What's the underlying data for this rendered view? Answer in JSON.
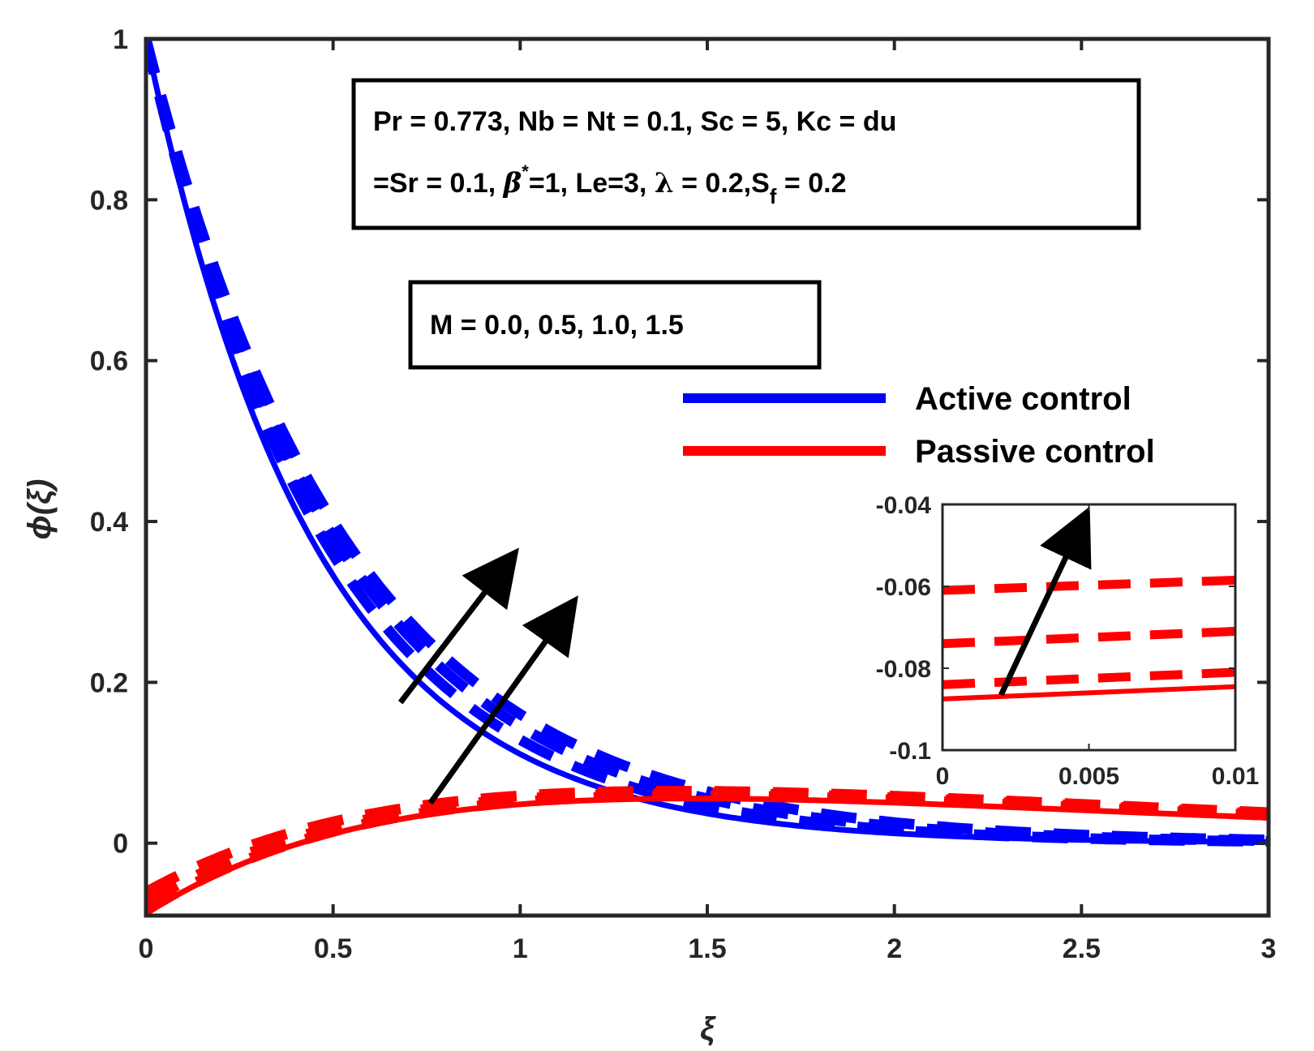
{
  "chart_data": {
    "type": "line",
    "xlabel": "ξ",
    "ylabel": "ϕ(ξ)",
    "xlim": [
      0,
      3
    ],
    "ylim": [
      -0.09,
      1
    ],
    "xticks": [
      0,
      0.5,
      1,
      1.5,
      2,
      2.5,
      3
    ],
    "xtick_labels": [
      "0",
      "0.5",
      "1",
      "1.5",
      "2",
      "2.5",
      "3"
    ],
    "yticks": [
      0,
      0.2,
      0.4,
      0.6,
      0.8,
      1
    ],
    "ytick_labels": [
      "0",
      "0.2",
      "0.4",
      "0.6",
      "0.8",
      "1"
    ],
    "parameter_box": {
      "line1": "Pr = 0.773, Nb = Nt = 0.1, Sc = 5, Kc = du",
      "line2_a": "=Sr = 0.1, ",
      "beta_symbol": "β",
      "beta_sup": "*",
      "line2_b": "=1, Le=3, ",
      "lambda_symbol": "λ",
      "line2_c": " = 0.2,S",
      "sf_sub": "f",
      "line2_d": " = 0.2"
    },
    "m_box": "M = 0.0, 0.5, 1.0, 1.5",
    "legend": [
      {
        "label": "Active control",
        "color": "#0000ff"
      },
      {
        "label": "Passive control",
        "color": "#ff0000"
      }
    ],
    "series": [
      {
        "name": "Active control, M = 0.0",
        "group": "active",
        "style": "solid",
        "y0": 1.0,
        "decay": 2.2
      },
      {
        "name": "Active control, M = 0.5",
        "group": "active",
        "style": "dashed",
        "y0": 1.0,
        "decay": 2.05
      },
      {
        "name": "Active control, M = 1.0",
        "group": "active",
        "style": "dashed",
        "y0": 1.0,
        "decay": 1.93
      },
      {
        "name": "Active control, M = 1.5",
        "group": "active",
        "style": "dashed",
        "y0": 1.0,
        "decay": 1.83
      },
      {
        "name": "Passive control, M = 0.0",
        "group": "passive",
        "style": "solid",
        "y0": -0.0875,
        "peak_x": 1.05,
        "peak_y": 0.05
      },
      {
        "name": "Passive control, M = 0.5",
        "group": "passive",
        "style": "dashed",
        "y0": -0.084,
        "peak_x": 1.08,
        "peak_y": 0.054
      },
      {
        "name": "Passive control, M = 1.0",
        "group": "passive",
        "style": "dashed",
        "y0": -0.074,
        "peak_x": 1.1,
        "peak_y": 0.058
      },
      {
        "name": "Passive control, M = 1.5",
        "group": "passive",
        "style": "dashed",
        "y0": -0.061,
        "peak_x": 1.12,
        "peak_y": 0.062
      }
    ],
    "arrows": [
      {
        "from": [
          0.68,
          0.175
        ],
        "to": [
          0.96,
          0.345
        ]
      },
      {
        "from": [
          0.76,
          0.05
        ],
        "to": [
          1.12,
          0.285
        ]
      }
    ],
    "inset": {
      "xlim": [
        0,
        0.01
      ],
      "ylim": [
        -0.1,
        -0.04
      ],
      "xticks": [
        0,
        0.005,
        0.01
      ],
      "xtick_labels": [
        "0",
        "0.005",
        "0.01"
      ],
      "yticks": [
        -0.1,
        -0.08,
        -0.06,
        -0.04
      ],
      "ytick_labels": [
        "-0.1",
        "-0.08",
        "-0.06",
        "-0.04"
      ],
      "series": [
        {
          "name": "Passive control, M = 0.0",
          "style": "solid",
          "x": [
            0,
            0.01
          ],
          "y": [
            -0.0875,
            -0.0845
          ]
        },
        {
          "name": "Passive control, M = 0.5",
          "style": "dashed",
          "x": [
            0,
            0.01
          ],
          "y": [
            -0.084,
            -0.081
          ]
        },
        {
          "name": "Passive control, M = 1.0",
          "style": "dashed",
          "x": [
            0,
            0.01
          ],
          "y": [
            -0.074,
            -0.071
          ]
        },
        {
          "name": "Passive control, M = 1.5",
          "style": "dashed",
          "x": [
            0,
            0.01
          ],
          "y": [
            -0.061,
            -0.0585
          ]
        }
      ],
      "arrow": {
        "from": [
          0.002,
          -0.0865
        ],
        "to": [
          0.0047,
          -0.0455
        ]
      }
    }
  }
}
